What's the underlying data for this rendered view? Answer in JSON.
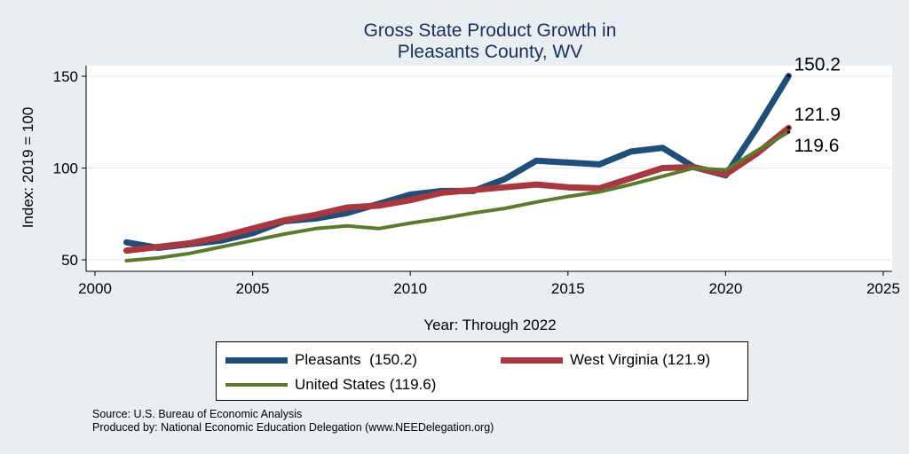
{
  "chart_data": {
    "type": "line",
    "title": [
      "Gross State Product Growth in",
      "Pleasants County, WV"
    ],
    "xlabel": "Year: Through 2022",
    "ylabel": "Index: 2019 = 100",
    "xlim": [
      2000,
      2025
    ],
    "ylim": [
      50,
      150
    ],
    "xticks": [
      2000,
      2005,
      2010,
      2015,
      2020,
      2025
    ],
    "yticks": [
      50,
      100,
      150
    ],
    "grid": true,
    "legend_position": "bottom",
    "x": [
      2001,
      2002,
      2003,
      2004,
      2005,
      2006,
      2007,
      2008,
      2009,
      2010,
      2011,
      2012,
      2013,
      2014,
      2015,
      2016,
      2017,
      2018,
      2019,
      2020,
      2021,
      2022
    ],
    "series": [
      {
        "name": "Pleasants  (150.2)",
        "color": "#1f4e79",
        "values": [
          59.5,
          56.5,
          58.5,
          60.5,
          64.5,
          71,
          72.5,
          75.5,
          80.5,
          85.5,
          87.5,
          87.5,
          94,
          104,
          103,
          102,
          109,
          111,
          100.5,
          96,
          122,
          150.2
        ],
        "end_label": "150.2"
      },
      {
        "name": "West Virginia (121.9)",
        "color": "#a8373f",
        "values": [
          55,
          57,
          59,
          62.5,
          67,
          71.5,
          74.5,
          78.5,
          79.5,
          82.5,
          86.5,
          88,
          89.5,
          91,
          89.5,
          89,
          94.5,
          100,
          100.5,
          96.5,
          108,
          121.9
        ],
        "end_label": "121.9"
      },
      {
        "name": "United States (119.6)",
        "color": "#5b7a2e",
        "values": [
          49.5,
          51,
          53.5,
          57,
          60.5,
          64,
          67,
          68.5,
          67,
          70,
          72.5,
          75.5,
          78,
          81.5,
          84.5,
          87,
          91,
          95.5,
          100,
          99,
          109.5,
          119.6
        ],
        "end_label": "119.6"
      }
    ]
  },
  "footer": {
    "source": "Source: U.S. Bureau of Economic Analysis",
    "produced": "Produced by: National Economic Education Delegation (www.NEEDelegation.org)"
  }
}
